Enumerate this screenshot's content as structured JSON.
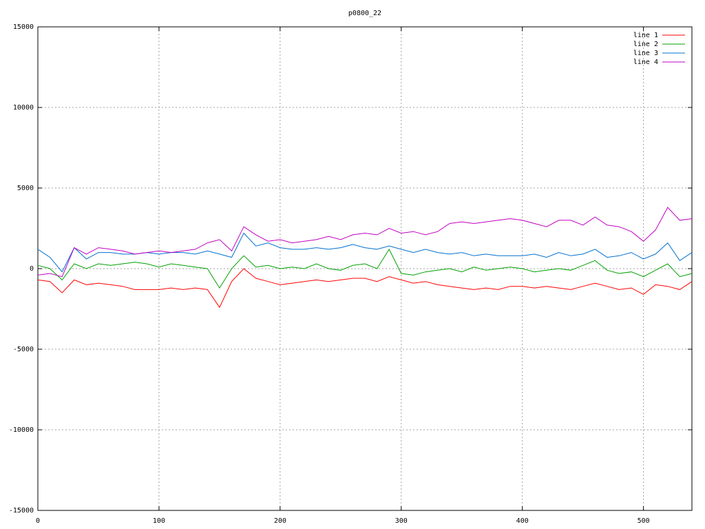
{
  "chart_data": {
    "type": "line",
    "title": "p0800_22",
    "x": [
      0,
      10,
      20,
      30,
      40,
      50,
      60,
      70,
      80,
      90,
      100,
      110,
      120,
      130,
      140,
      150,
      160,
      170,
      180,
      190,
      200,
      210,
      220,
      230,
      240,
      250,
      260,
      270,
      280,
      290,
      300,
      310,
      320,
      330,
      340,
      350,
      360,
      370,
      380,
      390,
      400,
      410,
      420,
      430,
      440,
      450,
      460,
      470,
      480,
      490,
      500,
      510,
      520,
      530,
      540
    ],
    "series": [
      {
        "name": "line 1",
        "color": "#ff0000",
        "values": [
          -700,
          -800,
          -1500,
          -700,
          -1000,
          -900,
          -1000,
          -1100,
          -1300,
          -1300,
          -1300,
          -1200,
          -1300,
          -1200,
          -1300,
          -2400,
          -800,
          0,
          -600,
          -800,
          -1000,
          -900,
          -800,
          -700,
          -800,
          -700,
          -600,
          -600,
          -800,
          -500,
          -700,
          -900,
          -800,
          -1000,
          -1100,
          -1200,
          -1300,
          -1200,
          -1300,
          -1100,
          -1100,
          -1200,
          -1100,
          -1200,
          -1300,
          -1100,
          -900,
          -1100,
          -1300,
          -1200,
          -1600,
          -1000,
          -1100,
          -1300,
          -800
        ]
      },
      {
        "name": "line 2",
        "color": "#00a000",
        "values": [
          200,
          0,
          -700,
          300,
          0,
          300,
          200,
          300,
          400,
          300,
          100,
          300,
          200,
          100,
          0,
          -1200,
          0,
          800,
          100,
          200,
          0,
          100,
          0,
          300,
          0,
          -100,
          200,
          300,
          0,
          1200,
          -300,
          -400,
          -200,
          -100,
          0,
          -200,
          100,
          -100,
          0,
          100,
          0,
          -200,
          -100,
          0,
          -100,
          200,
          500,
          -100,
          -300,
          -200,
          -500,
          -100,
          300,
          -500,
          -300
        ]
      },
      {
        "name": "line 3",
        "color": "#0070d0",
        "values": [
          1200,
          700,
          -200,
          1300,
          600,
          1000,
          1000,
          900,
          900,
          1000,
          900,
          1000,
          1000,
          900,
          1100,
          900,
          700,
          2200,
          1400,
          1600,
          1300,
          1200,
          1200,
          1300,
          1200,
          1300,
          1500,
          1300,
          1200,
          1400,
          1200,
          1000,
          1200,
          1000,
          900,
          1000,
          800,
          900,
          800,
          800,
          800,
          900,
          700,
          1000,
          800,
          900,
          1200,
          700,
          800,
          1000,
          600,
          900,
          1600,
          500,
          1000
        ]
      },
      {
        "name": "line 4",
        "color": "#c000c0",
        "values": [
          -400,
          -300,
          -500,
          1300,
          900,
          1300,
          1200,
          1100,
          900,
          1000,
          1100,
          1000,
          1100,
          1200,
          1600,
          1800,
          1100,
          2600,
          2100,
          1700,
          1800,
          1600,
          1700,
          1800,
          2000,
          1800,
          2100,
          2200,
          2100,
          2500,
          2200,
          2300,
          2100,
          2300,
          2800,
          2900,
          2800,
          2900,
          3000,
          3100,
          3000,
          2800,
          2600,
          3000,
          3000,
          2700,
          3200,
          2700,
          2600,
          2300,
          1700,
          2400,
          3800,
          3000,
          3100
        ]
      }
    ],
    "xlim": [
      0,
      540
    ],
    "xticks": [
      0,
      100,
      200,
      300,
      400,
      500
    ],
    "ylim": [
      -15000,
      15000
    ],
    "yticks": [
      -15000,
      -10000,
      -5000,
      0,
      5000,
      10000,
      15000
    ],
    "grid": true,
    "legend": "top-right"
  }
}
